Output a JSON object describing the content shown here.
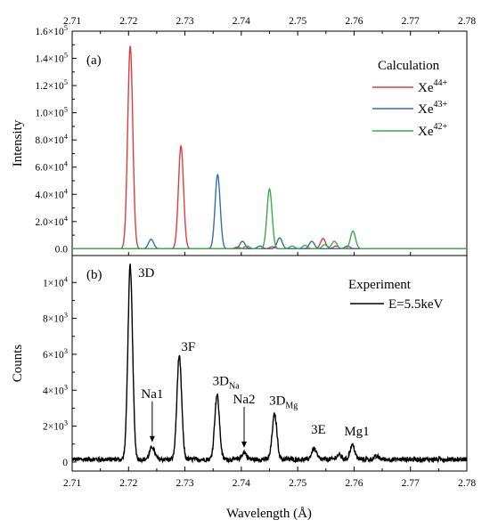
{
  "chart_data": [
    {
      "panel": "(a)",
      "type": "line",
      "xlabel": "",
      "ylabel": "Intensity",
      "xlim": [
        2.71,
        2.78
      ],
      "ylim": [
        -5000,
        160000
      ],
      "x_ticks": [
        "2.71",
        "2.72",
        "2.73",
        "2.74",
        "2.75",
        "2.76",
        "2.77",
        "2.78"
      ],
      "y_ticks": [
        {
          "value": 0,
          "label": "0.0"
        },
        {
          "value": 20000,
          "mant": "2.0×10",
          "exp": "4"
        },
        {
          "value": 40000,
          "mant": "4.0×10",
          "exp": "4"
        },
        {
          "value": 60000,
          "mant": "6.0×10",
          "exp": "4"
        },
        {
          "value": 80000,
          "mant": "8.0×10",
          "exp": "4"
        },
        {
          "value": 100000,
          "mant": "1.0×10",
          "exp": "5"
        },
        {
          "value": 120000,
          "mant": "1.2×10",
          "exp": "5"
        },
        {
          "value": 140000,
          "mant": "1.4×10",
          "exp": "5"
        },
        {
          "value": 160000,
          "mant": "1.6×10",
          "exp": "5"
        }
      ],
      "legend_title": "Calculation",
      "legend_position": "top-right",
      "series": [
        {
          "base": "Xe",
          "charge": "44+",
          "color": "#e03c3c",
          "peaks": [
            [
              2.7203,
              149000
            ],
            [
              2.7293,
              75500
            ],
            [
              2.7393,
              1200
            ],
            [
              2.7455,
              1500
            ],
            [
              2.7545,
              7500
            ],
            [
              2.7568,
              2000
            ]
          ]
        },
        {
          "base": "Xe",
          "charge": "43+",
          "color": "#2f6fb5",
          "peaks": [
            [
              2.724,
              7000
            ],
            [
              2.7358,
              54500
            ],
            [
              2.7402,
              5500
            ],
            [
              2.7433,
              2000
            ],
            [
              2.7468,
              8000
            ],
            [
              2.7525,
              5500
            ],
            [
              2.7588,
              2000
            ]
          ]
        },
        {
          "base": "Xe",
          "charge": "42+",
          "color": "#3aaa4a",
          "peaks": [
            [
              2.741,
              2000
            ],
            [
              2.745,
              44000
            ],
            [
              2.749,
              2000
            ],
            [
              2.7513,
              2500
            ],
            [
              2.7548,
              3000
            ],
            [
              2.7565,
              5500
            ],
            [
              2.7598,
              13000
            ]
          ]
        }
      ]
    },
    {
      "panel": "(b)",
      "type": "line",
      "xlabel": "Wavelength (Å)",
      "ylabel": "Counts",
      "xlim": [
        2.71,
        2.78
      ],
      "ylim": [
        -500,
        11500
      ],
      "x_ticks": [
        "2.71",
        "2.72",
        "2.73",
        "2.74",
        "2.75",
        "2.76",
        "2.77",
        "2.78"
      ],
      "y_ticks": [
        {
          "value": 0,
          "label": "0"
        },
        {
          "value": 2000,
          "mant": "2×10",
          "exp": "3"
        },
        {
          "value": 4000,
          "mant": "4×10",
          "exp": "3"
        },
        {
          "value": 6000,
          "mant": "6×10",
          "exp": "3"
        },
        {
          "value": 8000,
          "mant": "8×10",
          "exp": "3"
        },
        {
          "value": 10000,
          "mant": "1×10",
          "exp": "4"
        }
      ],
      "legend_title": "Experiment",
      "legend_position": "top-right",
      "series": [
        {
          "name": "E=5.5keV",
          "color": "#000000",
          "peaks": [
            [
              2.7203,
              10700
            ],
            [
              2.7242,
              700
            ],
            [
              2.729,
              5700
            ],
            [
              2.7357,
              3600
            ],
            [
              2.7405,
              400
            ],
            [
              2.7459,
              2500
            ],
            [
              2.7529,
              600
            ],
            [
              2.7573,
              250
            ],
            [
              2.7597,
              800
            ],
            [
              2.764,
              150
            ]
          ]
        }
      ],
      "annotations": [
        {
          "id": "ann-3D",
          "text": "3D",
          "x": 2.7203,
          "y": 10700
        },
        {
          "id": "ann-3F",
          "text": "3F",
          "x": 2.729,
          "y": 5700
        },
        {
          "id": "ann-3DNa",
          "text": "3D",
          "sub": "Na",
          "x": 2.7357,
          "y": 3600
        },
        {
          "id": "ann-3DMg",
          "text": "3D",
          "sub": "Mg",
          "x": 2.7459,
          "y": 2500
        },
        {
          "id": "ann-3E",
          "text": "3E",
          "x": 2.7529,
          "y": 600
        },
        {
          "id": "ann-Mg1",
          "text": "Mg1",
          "x": 2.7597,
          "y": 800
        },
        {
          "id": "ann-Na1",
          "text": "Na1",
          "x": 2.7242,
          "y": 700,
          "arrow": true
        },
        {
          "id": "ann-Na2",
          "text": "Na2",
          "x": 2.7405,
          "y": 400,
          "arrow": true
        }
      ]
    }
  ]
}
